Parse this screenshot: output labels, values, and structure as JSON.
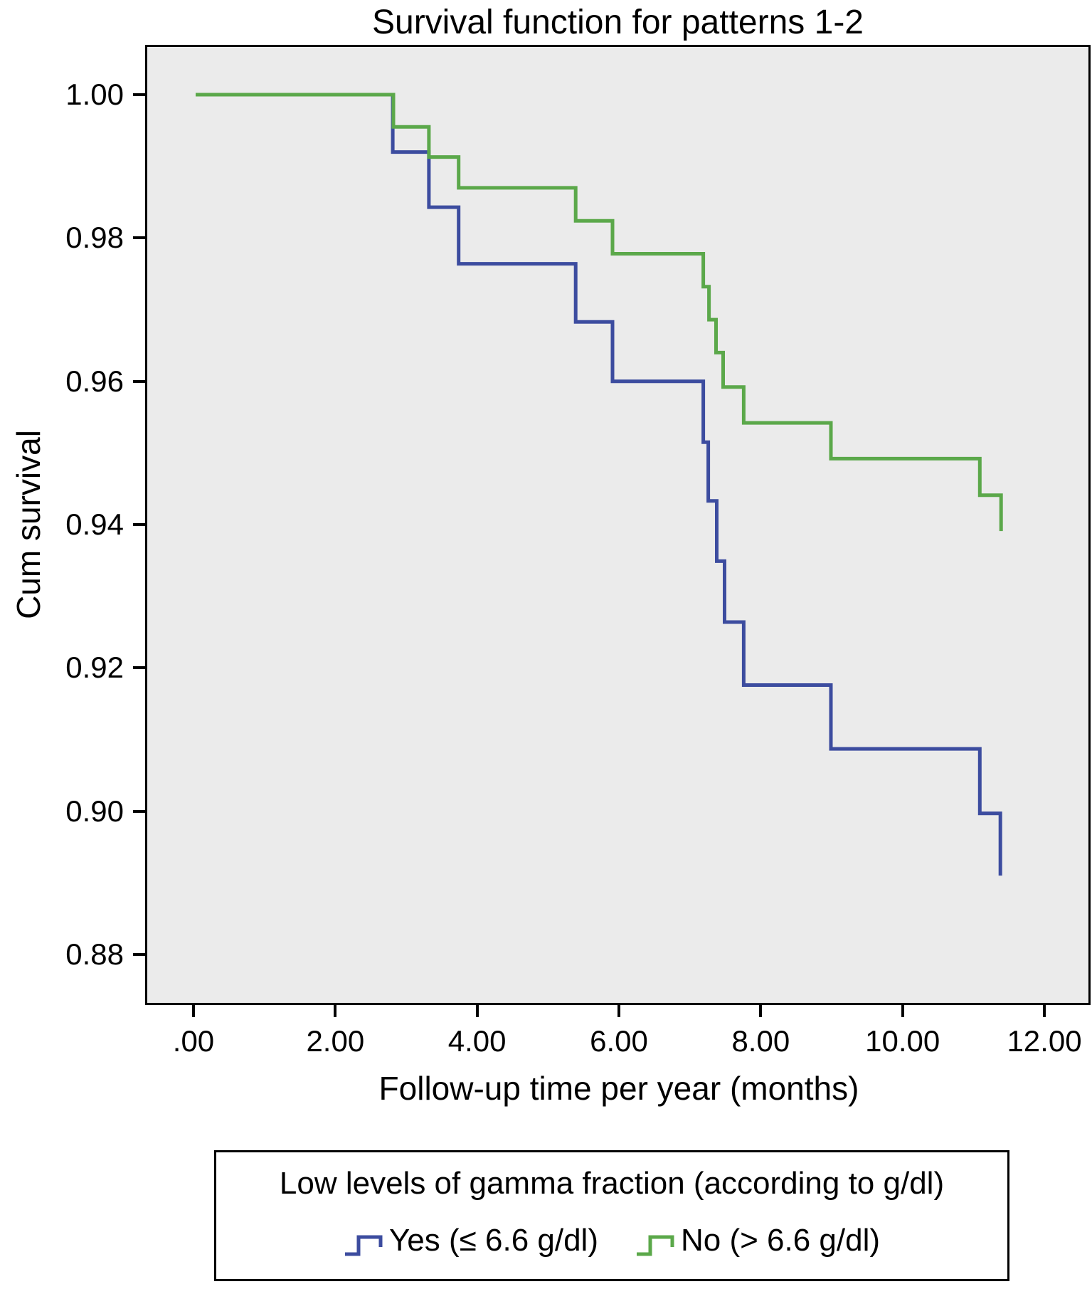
{
  "chart_data": {
    "type": "line",
    "subtype": "step-survival",
    "title": "Survival function for patterns 1-2",
    "xlabel": "Follow-up time per year (months)",
    "ylabel": "Cum survival",
    "xlim": [
      -0.652,
      12.622
    ],
    "ylim": [
      0.87325,
      1.00666
    ],
    "xticks": [
      0,
      2,
      4,
      6,
      8,
      10,
      12
    ],
    "xtick_labels": [
      ".00",
      "2.00",
      "4.00",
      "6.00",
      "8.00",
      "10.00",
      "12.00"
    ],
    "yticks": [
      1.0,
      0.98,
      0.96,
      0.94,
      0.92,
      0.9,
      0.88
    ],
    "ytick_labels": [
      "1.00",
      "0.98",
      "0.96",
      "0.94",
      "0.92",
      "0.90",
      "0.88"
    ],
    "grid": false,
    "plot_bg": "#EBEBEB",
    "line_width": 5,
    "series": [
      {
        "name": "Yes (≤ 6.6 g/dl)",
        "color": "#3C4C9F",
        "start": [
          0.03,
          1.0
        ],
        "drops": [
          [
            2.81,
            0.992
          ],
          [
            3.32,
            0.9843
          ],
          [
            3.74,
            0.9764
          ],
          [
            5.39,
            0.9683
          ],
          [
            5.91,
            0.96
          ],
          [
            7.19,
            0.9515
          ],
          [
            7.26,
            0.9433
          ],
          [
            7.38,
            0.9349
          ],
          [
            7.49,
            0.9264
          ],
          [
            7.76,
            0.9176
          ],
          [
            8.99,
            0.9087
          ],
          [
            11.09,
            0.8997
          ],
          [
            11.38,
            0.891
          ]
        ]
      },
      {
        "name": "No (> 6.6 g/dl)",
        "color": "#5BA84A",
        "start": [
          0.03,
          1.0
        ],
        "drops": [
          [
            2.82,
            0.9955
          ],
          [
            3.32,
            0.9913
          ],
          [
            3.74,
            0.987
          ],
          [
            5.39,
            0.9824
          ],
          [
            5.91,
            0.9778
          ],
          [
            7.19,
            0.9732
          ],
          [
            7.27,
            0.9686
          ],
          [
            7.37,
            0.964
          ],
          [
            7.47,
            0.9592
          ],
          [
            7.76,
            0.9542
          ],
          [
            8.99,
            0.9492
          ],
          [
            11.09,
            0.9441
          ],
          [
            11.39,
            0.9391
          ]
        ]
      }
    ]
  },
  "legend": {
    "title": "Low levels of gamma fraction (according to g/dl)",
    "items": [
      {
        "label": "Yes (≤ 6.6 g/dl)",
        "color": "#3C4C9F"
      },
      {
        "label": "No (> 6.6 g/dl)",
        "color": "#5BA84A"
      }
    ]
  }
}
